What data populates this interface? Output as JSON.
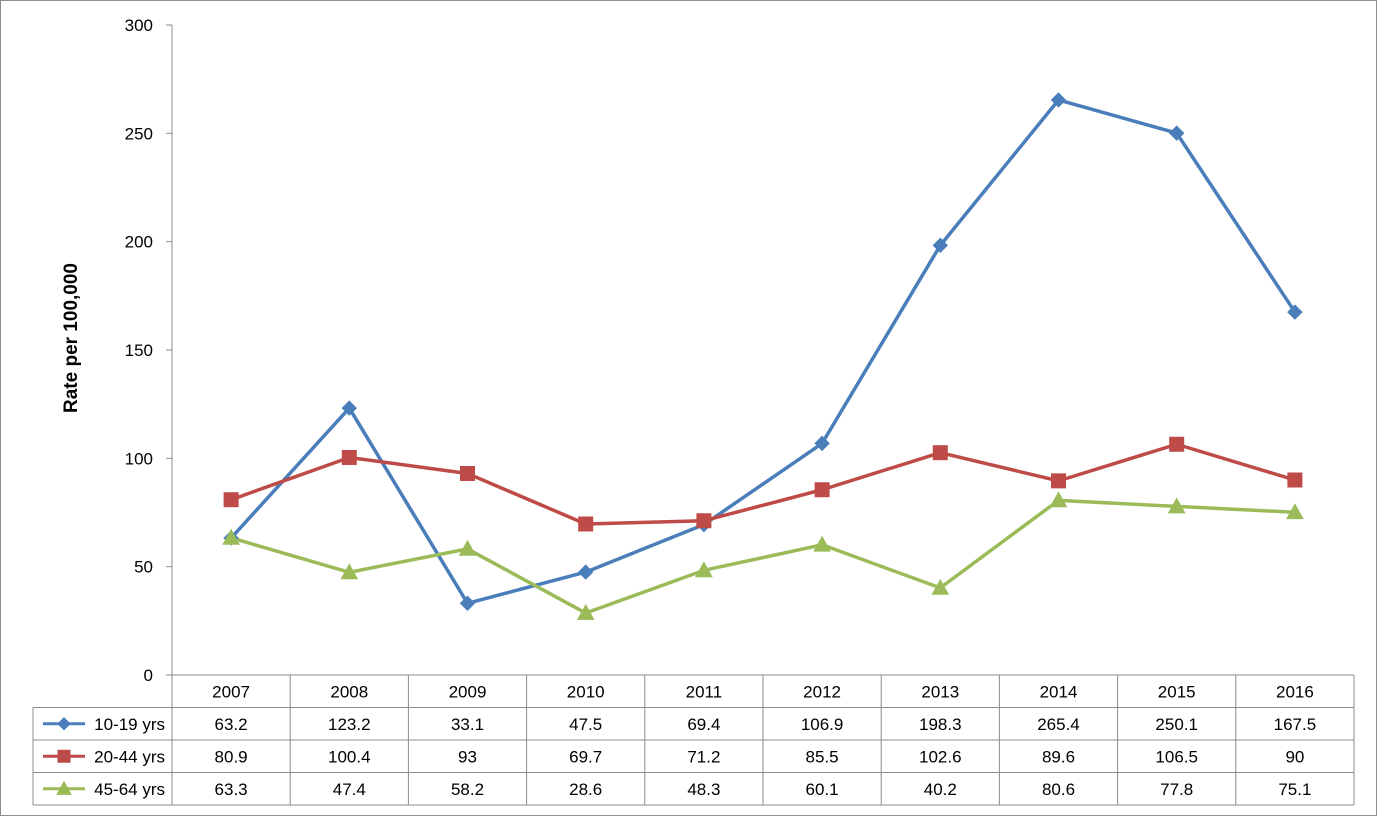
{
  "chart_data": {
    "type": "line",
    "ylabel": "Rate per 100,000",
    "xlabel": "",
    "ylim": [
      0,
      300
    ],
    "yticks": [
      0,
      50,
      100,
      150,
      200,
      250,
      300
    ],
    "categories": [
      "2007",
      "2008",
      "2009",
      "2010",
      "2011",
      "2012",
      "2013",
      "2014",
      "2015",
      "2016"
    ],
    "grid": false,
    "legend": "data-table-left",
    "series": [
      {
        "name": "10-19 yrs",
        "color": "#4a7ebb",
        "marker": "diamond",
        "values": [
          63.2,
          123.2,
          33.1,
          47.5,
          69.4,
          106.9,
          198.3,
          265.4,
          250.1,
          167.5
        ],
        "labels": [
          "63.2",
          "123.2",
          "33.1",
          "47.5",
          "69.4",
          "106.9",
          "198.3",
          "265.4",
          "250.1",
          "167.5"
        ]
      },
      {
        "name": "20-44 yrs",
        "color": "#be4b48",
        "marker": "square",
        "values": [
          80.9,
          100.4,
          93,
          69.7,
          71.2,
          85.5,
          102.6,
          89.6,
          106.5,
          90
        ],
        "labels": [
          "80.9",
          "100.4",
          "93",
          "69.7",
          "71.2",
          "85.5",
          "102.6",
          "89.6",
          "106.5",
          "90"
        ]
      },
      {
        "name": "45-64 yrs",
        "color": "#9bbb59",
        "marker": "triangle",
        "values": [
          63.3,
          47.4,
          58.2,
          28.6,
          48.3,
          60.1,
          40.2,
          80.6,
          77.8,
          75.1
        ],
        "labels": [
          "63.3",
          "47.4",
          "58.2",
          "28.6",
          "48.3",
          "60.1",
          "40.2",
          "80.6",
          "77.8",
          "75.1"
        ]
      }
    ]
  }
}
